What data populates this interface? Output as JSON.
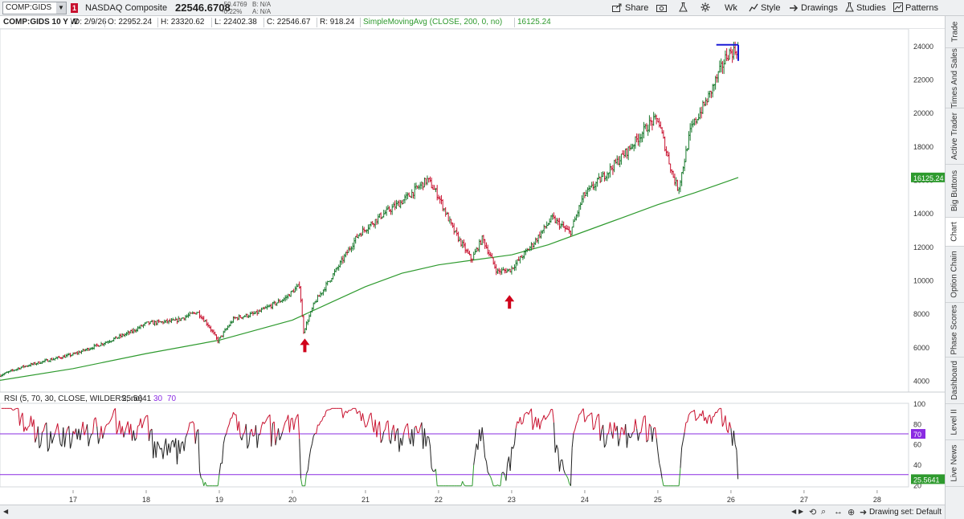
{
  "toolbar": {
    "symbol": "COMP:GIDS",
    "alert_count": "1",
    "description": "NASDAQ Composite",
    "last_price": "22546.6708",
    "change": "-50.4769",
    "change_pct": "-0.22%",
    "bid": "B: N/A",
    "ask": "A: N/A",
    "share_label": "Share",
    "aggregation": "Wk",
    "style_label": "Style",
    "drawings_label": "Drawings",
    "studies_label": "Studies",
    "patterns_label": "Patterns"
  },
  "header": {
    "title": "COMP:GIDS 10 Y W",
    "date": "D: 2/9/26",
    "open": "O: 22952.24",
    "high": "H: 23320.62",
    "low": "L: 22402.38",
    "close": "C: 22546.67",
    "range": "R: 918.24",
    "study_name": "SimpleMovingAvg (CLOSE, 200, 0, no)",
    "study_value": "16125.24"
  },
  "rsi_header": {
    "label": "RSI (5, 70, 30, CLOSE, WILDERS, no)",
    "value": "25.5641",
    "over_sold": "30",
    "over_bought": "70"
  },
  "sidebar_tabs": [
    "Trade",
    "Times And Sales",
    "Active Trader",
    "Big Buttons",
    "Chart",
    "Option Chain",
    "Phase Scores",
    "Dashboard",
    "Level II",
    "Live News"
  ],
  "footer": {
    "drawing_set": "Drawing set: Default"
  },
  "colors": {
    "up": "#1a7a2e",
    "down": "#c8102e",
    "sma": "#2e9a2e",
    "rsi_line": "#222222",
    "rsi_overbought": "#c8102e",
    "rsi_oversold": "#2e9a2e",
    "rsi_levels": "#8a2be2",
    "arrow": "#d0021b",
    "drawing": "#1a1ad6"
  },
  "chart_data": {
    "type": "candlestick",
    "x_ticks": [
      "17",
      "18",
      "19",
      "20",
      "21",
      "22",
      "23",
      "24",
      "25",
      "26",
      "27",
      "28"
    ],
    "price_axis": [
      4000,
      6000,
      8000,
      10000,
      12000,
      14000,
      16000,
      18000,
      20000,
      22000,
      24000
    ],
    "ylim": [
      3300,
      25000
    ],
    "sma_label": "16125.24",
    "price_label": "22546.67",
    "price_path": [
      [
        2016.0,
        4300
      ],
      [
        2016.3,
        4800
      ],
      [
        2016.7,
        5250
      ],
      [
        2017.0,
        5550
      ],
      [
        2017.4,
        6200
      ],
      [
        2017.8,
        6900
      ],
      [
        2018.0,
        7400
      ],
      [
        2018.4,
        7550
      ],
      [
        2018.7,
        8100
      ],
      [
        2018.85,
        7300
      ],
      [
        2018.98,
        6350
      ],
      [
        2019.2,
        7700
      ],
      [
        2019.5,
        8000
      ],
      [
        2019.9,
        8900
      ],
      [
        2020.1,
        9700
      ],
      [
        2020.15,
        6900
      ],
      [
        2020.3,
        8600
      ],
      [
        2020.6,
        10600
      ],
      [
        2020.9,
        12700
      ],
      [
        2021.2,
        13800
      ],
      [
        2021.5,
        14700
      ],
      [
        2021.85,
        16000
      ],
      [
        2022.0,
        15000
      ],
      [
        2022.2,
        13000
      ],
      [
        2022.45,
        11200
      ],
      [
        2022.6,
        12500
      ],
      [
        2022.8,
        10500
      ],
      [
        2022.98,
        10600
      ],
      [
        2023.3,
        12200
      ],
      [
        2023.55,
        13700
      ],
      [
        2023.8,
        12800
      ],
      [
        2023.98,
        15000
      ],
      [
        2024.3,
        16400
      ],
      [
        2024.6,
        17800
      ],
      [
        2024.9,
        19400
      ],
      [
        2025.0,
        19600
      ],
      [
        2025.2,
        16300
      ],
      [
        2025.28,
        15400
      ],
      [
        2025.45,
        19000
      ],
      [
        2025.7,
        21000
      ],
      [
        2025.95,
        23500
      ],
      [
        2026.1,
        23800
      ],
      [
        2026.1,
        22500
      ]
    ],
    "sma_path": [
      [
        2016.0,
        4000
      ],
      [
        2017.0,
        4700
      ],
      [
        2018.0,
        5600
      ],
      [
        2019.0,
        6400
      ],
      [
        2019.5,
        7000
      ],
      [
        2020.0,
        7600
      ],
      [
        2020.5,
        8600
      ],
      [
        2021.0,
        9600
      ],
      [
        2021.5,
        10400
      ],
      [
        2022.0,
        10900
      ],
      [
        2022.5,
        11200
      ],
      [
        2023.0,
        11500
      ],
      [
        2023.5,
        12100
      ],
      [
        2024.0,
        12900
      ],
      [
        2024.5,
        13700
      ],
      [
        2025.0,
        14500
      ],
      [
        2025.5,
        15200
      ],
      [
        2026.1,
        16125
      ]
    ],
    "resistance_line": {
      "x_start": 2025.8,
      "x_end": 2026.1,
      "y": 24050
    },
    "up_arrows": [
      {
        "x": 2020.17,
        "y": 6500
      },
      {
        "x": 2022.97,
        "y": 9100
      }
    ],
    "rsi": {
      "ylim": [
        18,
        100
      ],
      "axis_ticks": [
        20,
        40,
        60,
        80,
        100
      ],
      "overbought": 70,
      "oversold": 30,
      "last_value": 25.5641
    }
  }
}
